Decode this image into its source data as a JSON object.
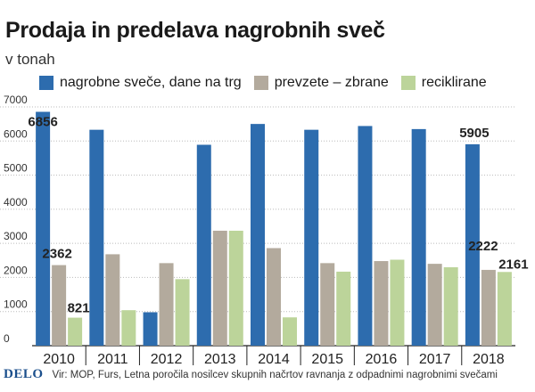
{
  "colors": {
    "series_0": "#2d6cae",
    "series_1": "#b3aa9d",
    "series_2": "#bcd49a",
    "grid": "#bbbbbb",
    "axis": "#222222"
  },
  "footer": {
    "logo": "DELO",
    "source": "Vir: MOP, Furs, Letna poročila nosilcev skupnih načrtov ravnanja z odpadnimi nagrobnimi svečami"
  },
  "chart_data": {
    "type": "bar",
    "title": "Prodaja in predelava nagrobnih sveč",
    "subtitle": "v tonah",
    "xlabel": "",
    "ylabel": "",
    "ylim": [
      0,
      7000
    ],
    "yticks": [
      0,
      1000,
      2000,
      3000,
      4000,
      5000,
      6000,
      7000
    ],
    "grid": true,
    "legend_position": "top",
    "categories": [
      "2010",
      "2011",
      "2012",
      "2013",
      "2014",
      "2015",
      "2016",
      "2017",
      "2018"
    ],
    "series": [
      {
        "name": "nagrobne sveče, dane na trg",
        "values": [
          6856,
          6330,
          980,
          5890,
          6500,
          6330,
          6440,
          6350,
          5905
        ]
      },
      {
        "name": "prevzete – zbrane",
        "values": [
          2362,
          2680,
          2420,
          3370,
          2860,
          2420,
          2480,
          2400,
          2222
        ]
      },
      {
        "name": "reciklirane",
        "values": [
          821,
          1040,
          1950,
          3370,
          830,
          2170,
          2520,
          2300,
          2161
        ]
      }
    ],
    "data_labels": [
      {
        "series": 0,
        "index": 0,
        "text": "6856"
      },
      {
        "series": 1,
        "index": 0,
        "text": "2362"
      },
      {
        "series": 2,
        "index": 0,
        "text": "821"
      },
      {
        "series": 0,
        "index": 8,
        "text": "5905"
      },
      {
        "series": 1,
        "index": 8,
        "text": "2222"
      },
      {
        "series": 2,
        "index": 8,
        "text": "2161"
      }
    ]
  }
}
